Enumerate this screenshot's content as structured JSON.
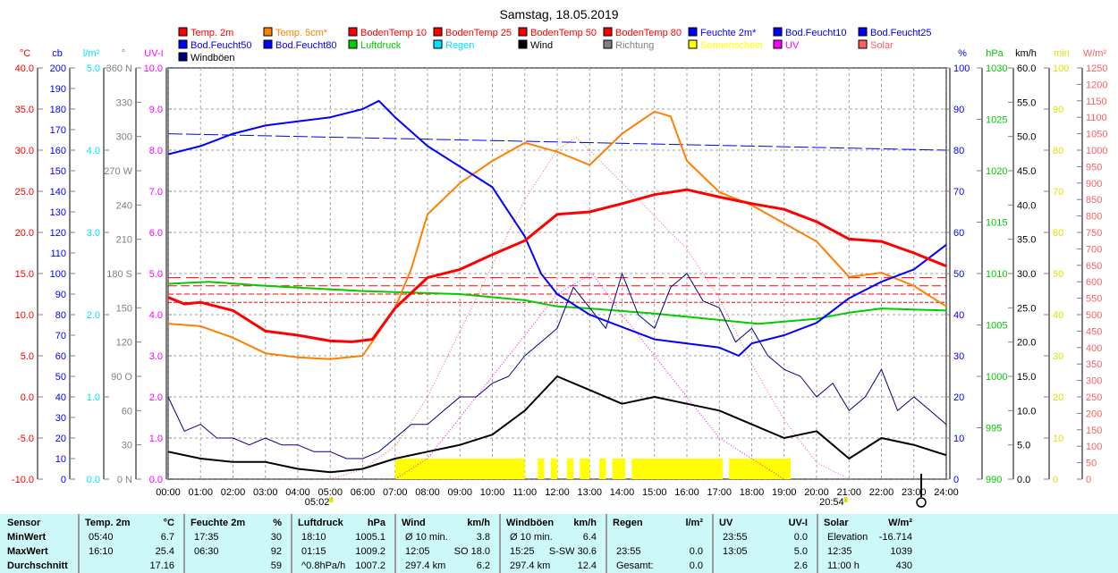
{
  "chart_data": {
    "type": "line",
    "title": "Samstag, 18.05.2019",
    "x_ticks": [
      "00:00",
      "01:00",
      "02:00",
      "03:00",
      "04:00",
      "05:00",
      "06:00",
      "07:00",
      "08:00",
      "09:00",
      "10:00",
      "11:00",
      "12:00",
      "13:00",
      "14:00",
      "15:00",
      "16:00",
      "17:00",
      "18:00",
      "19:00",
      "20:00",
      "21:00",
      "22:00",
      "23:00",
      "24:00"
    ],
    "sunrise": "05:02",
    "sunset": "20:54",
    "axes_left": [
      {
        "unit": "°C",
        "color": "#ff0000",
        "min": -10,
        "max": 40,
        "step": 5,
        "decimals": 1
      },
      {
        "unit": "cb",
        "color": "#0000ff",
        "min": 0,
        "max": 200,
        "step": 10,
        "decimals": 0
      },
      {
        "unit": "l/m²",
        "color": "#00e0ff",
        "min": 0,
        "max": 5,
        "step": 1,
        "decimals": 1
      },
      {
        "unit": "°",
        "color": "#808080",
        "min": 0,
        "max": 360,
        "step": 30,
        "decimals": 0,
        "compass": {
          "0": "N",
          "90": "O",
          "180": "S",
          "270": "W",
          "360": "N"
        }
      },
      {
        "unit": "UV-I",
        "color": "#ff00ff",
        "min": 0,
        "max": 10,
        "step": 1,
        "decimals": 1
      }
    ],
    "axes_right": [
      {
        "unit": "%",
        "color": "#0000ff",
        "min": 0,
        "max": 100,
        "step": 10,
        "decimals": 0
      },
      {
        "unit": "hPa",
        "color": "#00cc00",
        "min": 990,
        "max": 1030,
        "step": 5,
        "decimals": 0
      },
      {
        "unit": "km/h",
        "color": "#000000",
        "min": 0,
        "max": 60,
        "step": 5,
        "decimals": 1
      },
      {
        "unit": "min",
        "color": "#e0e000",
        "min": 0,
        "max": 100,
        "step": 10,
        "decimals": 0
      },
      {
        "unit": "W/m²",
        "color": "#ff6060",
        "min": 0,
        "max": 1250,
        "step": 50,
        "decimals": 0
      }
    ],
    "legend": [
      {
        "label": "Temp. 2m",
        "color": "#ff0000"
      },
      {
        "label": "Temp. 5cm*",
        "color": "#ff8000"
      },
      {
        "label": "BodenTemp 10",
        "color": "#ff0000"
      },
      {
        "label": "BodenTemp 25",
        "color": "#ff0000"
      },
      {
        "label": "BodenTemp 50",
        "color": "#ff0000"
      },
      {
        "label": "BodenTemp 80",
        "color": "#ff0000"
      },
      {
        "label": "Feuchte 2m*",
        "color": "#0000ff"
      },
      {
        "label": "Bod.Feucht10",
        "color": "#0000ff"
      },
      {
        "label": "Bod.Feucht25",
        "color": "#0000ff"
      },
      {
        "label": "Bod.Feucht50",
        "color": "#0000ff"
      },
      {
        "label": "Bod.Feucht80",
        "color": "#0000ff"
      },
      {
        "label": "Luftdruck",
        "color": "#00cc00"
      },
      {
        "label": "Regen",
        "color": "#00e0ff"
      },
      {
        "label": "Wind",
        "color": "#000000"
      },
      {
        "label": "Richtung",
        "color": "#808080"
      },
      {
        "label": "Sonnenschein",
        "color": "#ffff00"
      },
      {
        "label": "UV",
        "color": "#ff00ff"
      },
      {
        "label": "Solar",
        "color": "#ff6060"
      },
      {
        "label": "Windböen",
        "color": "#000080"
      }
    ],
    "series": [
      {
        "name": "Temp. 2m",
        "axis": "°C",
        "x": [
          0,
          0.5,
          1,
          2,
          3,
          4,
          5,
          5.67,
          6.3,
          7,
          8,
          9,
          10,
          11,
          12,
          13,
          14,
          15,
          16,
          17,
          18,
          19,
          20,
          21,
          22,
          23,
          24
        ],
        "values": [
          12.1,
          11.3,
          11.5,
          10.5,
          8,
          7.5,
          6.8,
          6.7,
          7,
          10.8,
          14.5,
          15.5,
          17.3,
          19,
          22.2,
          22.5,
          23.5,
          24.6,
          25.2,
          24.3,
          23.5,
          22.8,
          21.3,
          19.2,
          18.9,
          17.5,
          15.9
        ]
      },
      {
        "name": "Temp. 5cm*",
        "axis": "°C",
        "x": [
          0,
          1,
          2,
          3,
          4,
          5,
          6,
          7,
          7.5,
          8,
          9,
          10,
          11,
          12,
          13,
          14,
          15,
          15.5,
          16,
          17,
          18,
          19,
          20,
          21,
          22,
          23,
          24
        ],
        "values": [
          8.9,
          8.6,
          7.2,
          5.3,
          4.8,
          4.6,
          5,
          10.8,
          15.6,
          22.2,
          26,
          28.7,
          30.9,
          29.8,
          28.2,
          32,
          34.7,
          34.1,
          28.7,
          24.9,
          23.3,
          21.1,
          18.9,
          14.6,
          15.1,
          13.5,
          11
        ]
      },
      {
        "name": "Feuchte 2m*",
        "axis": "%",
        "x": [
          0,
          1,
          2,
          3,
          4,
          5,
          6,
          6.5,
          7,
          8,
          9,
          10,
          11,
          11.5,
          12,
          13,
          14,
          15,
          16,
          17,
          17.6,
          18,
          19,
          20,
          21,
          22,
          23,
          24
        ],
        "values": [
          79,
          81,
          84,
          86,
          87,
          88,
          90,
          92,
          88,
          81,
          76,
          71,
          59,
          50,
          45,
          40,
          37,
          34,
          33,
          32,
          30,
          33,
          35,
          38,
          44,
          48,
          51,
          57
        ]
      },
      {
        "name": "Luftdruck",
        "axis": "hPa",
        "x": [
          0,
          1.25,
          3,
          6,
          9,
          11,
          12,
          13,
          15,
          18.2,
          20,
          21,
          22,
          24
        ],
        "values": [
          1009,
          1009.2,
          1008.8,
          1008.3,
          1008,
          1007.4,
          1006.8,
          1006.6,
          1006.1,
          1005.1,
          1005.6,
          1006.2,
          1006.6,
          1006.4
        ]
      },
      {
        "name": "Wind",
        "axis": "km/h",
        "x": [
          0,
          1,
          2,
          3,
          4,
          5,
          6,
          7,
          8,
          9,
          10,
          11,
          12,
          13,
          14,
          15,
          16,
          17,
          18,
          19,
          20,
          21,
          22,
          23,
          24
        ],
        "values": [
          4,
          3,
          2.5,
          2.5,
          1.5,
          1,
          1.5,
          3,
          4,
          5,
          6.5,
          10,
          15,
          13,
          11,
          12,
          11,
          10,
          8,
          6,
          7,
          3,
          6,
          5,
          3.5
        ]
      },
      {
        "name": "Windböen",
        "axis": "km/h",
        "x_step": 0.5,
        "values": [
          12,
          7,
          8,
          6,
          6,
          5,
          6,
          5,
          5,
          4,
          4,
          3,
          3,
          4,
          6,
          8,
          8,
          10,
          12,
          12,
          14,
          15,
          18,
          20,
          22,
          28,
          25,
          22,
          30,
          24,
          22,
          28,
          30,
          26,
          25,
          20,
          22,
          18,
          16,
          15,
          12,
          14,
          10,
          12,
          16,
          10,
          12,
          10,
          8
        ]
      },
      {
        "name": "Solar",
        "axis": "W/m²",
        "x": [
          5,
          6,
          7,
          8,
          9,
          10,
          11,
          12,
          12.58,
          13,
          14,
          15,
          16,
          17,
          18,
          19,
          20,
          21
        ],
        "values": [
          0,
          30,
          100,
          250,
          450,
          650,
          850,
          1000,
          1039,
          1000,
          900,
          800,
          700,
          550,
          350,
          180,
          50,
          0
        ]
      },
      {
        "name": "UV",
        "axis": "UV-I",
        "x": [
          7,
          8,
          9,
          10,
          11,
          12,
          13.08,
          14,
          15,
          16,
          17,
          18,
          19
        ],
        "values": [
          0,
          0.5,
          1.5,
          2.5,
          3.5,
          4.5,
          5,
          4,
          3,
          2,
          1,
          0.5,
          0
        ]
      },
      {
        "name": "BodenTemp 10",
        "axis": "°C",
        "constant": 14.5
      },
      {
        "name": "BodenTemp 25",
        "axis": "°C",
        "constant": 13.5
      },
      {
        "name": "BodenTemp 50",
        "axis": "°C",
        "constant": 12.5
      },
      {
        "name": "BodenTemp 80",
        "axis": "°C",
        "constant": 11.5
      },
      {
        "name": "Bod.Feucht10",
        "axis": "%",
        "x": [
          0,
          6,
          12,
          24
        ],
        "values": [
          84,
          83,
          82,
          80
        ]
      }
    ],
    "sunshine_blocks": [
      [
        7.0,
        11.0
      ],
      [
        11.4,
        11.6
      ],
      [
        11.8,
        12.0
      ],
      [
        12.3,
        12.5
      ],
      [
        12.7,
        13.0
      ],
      [
        13.3,
        13.5
      ],
      [
        13.7,
        14.1
      ],
      [
        14.3,
        17.1
      ],
      [
        17.3,
        19.2
      ]
    ],
    "sunshine_minutes": 5
  },
  "table": {
    "sensor": {
      "header": "Sensor",
      "rows": [
        "MinWert",
        "MaxWert",
        "Durchschnitt"
      ]
    },
    "groups": [
      {
        "label": "Temp. 2m",
        "unit": "°C",
        "rows": [
          [
            "05:40",
            "6.7"
          ],
          [
            "16:10",
            "25.4"
          ],
          [
            "",
            "17.16"
          ]
        ]
      },
      {
        "label": "Feuchte 2m",
        "unit": "%",
        "rows": [
          [
            "17:35",
            "30"
          ],
          [
            "06:30",
            "92"
          ],
          [
            "",
            "59"
          ]
        ]
      },
      {
        "label": "Luftdruck",
        "unit": "hPa",
        "rows": [
          [
            "18:10",
            "1005.1"
          ],
          [
            "01:15",
            "1009.2"
          ],
          [
            "^0.8hPa/h",
            "1007.2"
          ]
        ]
      },
      {
        "label": "Wind",
        "unit": "km/h",
        "rows": [
          [
            "Ø 10 min.",
            "3.8"
          ],
          [
            "12:05",
            "SO 18.0"
          ],
          [
            "297.4 km",
            "6.2"
          ]
        ]
      },
      {
        "label": "Windböen",
        "unit": "km/h",
        "rows": [
          [
            "Ø 10 min.",
            "6.4"
          ],
          [
            "15:25",
            "S-SW 30.6"
          ],
          [
            "297.4 km",
            "12.4"
          ]
        ]
      },
      {
        "label": "Regen",
        "unit": "l/m²",
        "rows": [
          [
            "",
            ""
          ],
          [
            "23:55",
            "0.0"
          ],
          [
            "Gesamt:",
            "0.0"
          ]
        ]
      },
      {
        "label": "UV",
        "unit": "UV-I",
        "rows": [
          [
            "23:55",
            "0.0"
          ],
          [
            "13:05",
            "5.0"
          ],
          [
            "",
            "2.6"
          ]
        ]
      },
      {
        "label": "Solar",
        "unit": "W/m²",
        "rows": [
          [
            "Elevation",
            "-16.714"
          ],
          [
            "12:35",
            "1039"
          ],
          [
            "11:00 h",
            "430"
          ]
        ]
      }
    ]
  }
}
